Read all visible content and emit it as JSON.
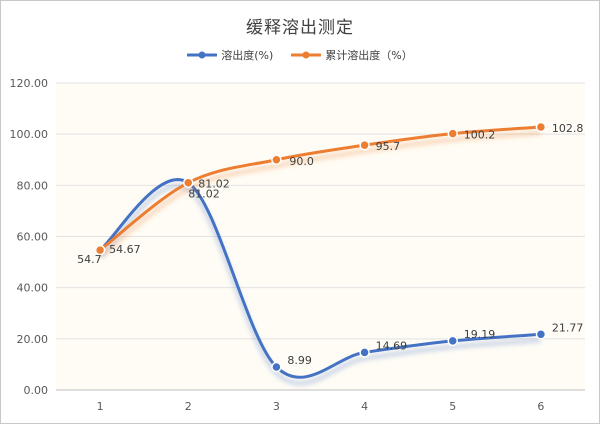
{
  "chart_data": {
    "type": "line",
    "title": "缓释溶出测定",
    "categories": [
      "1",
      "2",
      "3",
      "4",
      "5",
      "6"
    ],
    "ylim": [
      0,
      120
    ],
    "yticks": [
      "0.00",
      "20.00",
      "40.00",
      "60.00",
      "80.00",
      "100.00",
      "120.00"
    ],
    "grid": true,
    "legend_position": "top",
    "smooth": true,
    "series": [
      {
        "name": "溶出度(%)",
        "color": "#4472C4",
        "values": [
          54.7,
          81.02,
          8.99,
          14.69,
          19.19,
          21.77
        ],
        "labels": [
          "54.7",
          "81.02",
          "8.99",
          "14.69",
          "19.19",
          "21.77"
        ]
      },
      {
        "name": "累计溶出度（%）",
        "color": "#ED7D31",
        "values": [
          54.67,
          81.02,
          90.0,
          95.7,
          100.2,
          102.8
        ],
        "labels": [
          "54.67",
          "81.02",
          "90.0",
          "95.7",
          "100.2",
          "102.8"
        ]
      }
    ],
    "plot_background": "#FFFCF5"
  }
}
